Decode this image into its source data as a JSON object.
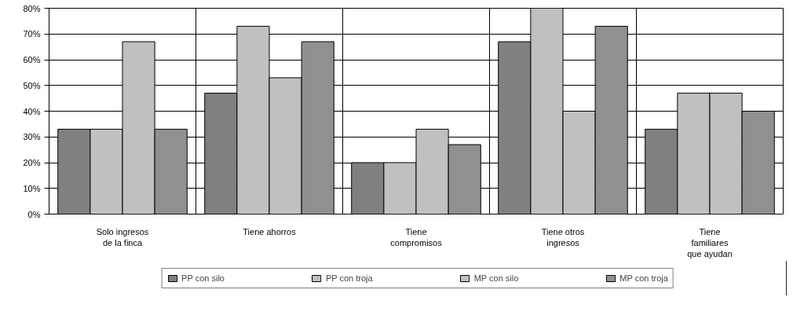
{
  "chart_data": {
    "type": "bar",
    "categories": [
      "Solo ingresos\nde la finca",
      "Tiene ahorros",
      "Tiene\ncompromisos",
      "Tiene otros\ningresos",
      "Tiene\nfamiliares\nque ayudan"
    ],
    "series": [
      {
        "name": "PP con silo",
        "color": "#808080",
        "values": [
          33,
          47,
          20,
          67,
          33
        ]
      },
      {
        "name": "PP con troja",
        "color": "#c0c0c0",
        "values": [
          33,
          73,
          20,
          80,
          47
        ]
      },
      {
        "name": "MP con silo",
        "color": "#c0c0c0",
        "values": [
          67,
          53,
          33,
          40,
          47
        ]
      },
      {
        "name": "MP con troja",
        "color": "#909090",
        "values": [
          33,
          67,
          27,
          73,
          40
        ]
      }
    ],
    "ylim": [
      0,
      80
    ],
    "yticks": [
      {
        "value": 0,
        "label": "0%"
      },
      {
        "value": 10,
        "label": "10%"
      },
      {
        "value": 20,
        "label": "20%"
      },
      {
        "value": 30,
        "label": "30%"
      },
      {
        "value": 40,
        "label": "40%"
      },
      {
        "value": 50,
        "label": "50%"
      },
      {
        "value": 60,
        "label": "60%"
      },
      {
        "value": 70,
        "label": "70%"
      },
      {
        "value": 80,
        "label": "80%"
      }
    ],
    "grid": true,
    "legend": "bottom"
  }
}
